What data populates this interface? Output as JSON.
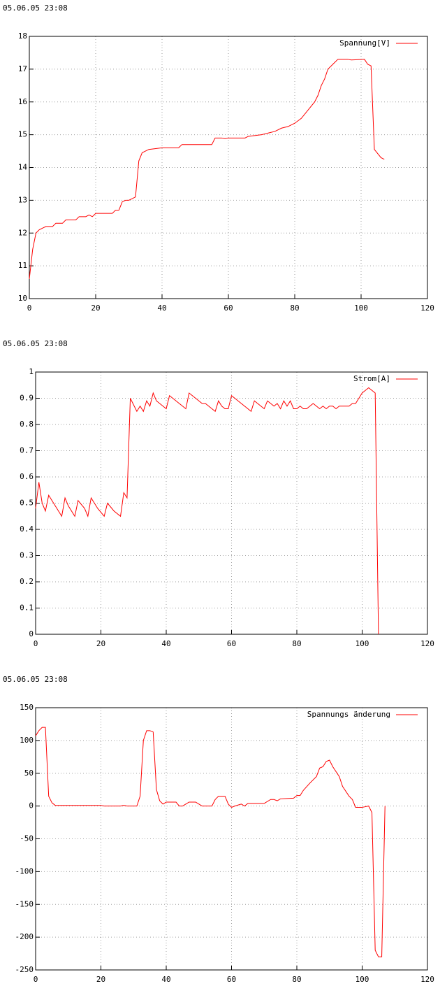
{
  "chart_data": [
    {
      "type": "line",
      "title": "05.06.05 23:08",
      "x": [
        0,
        1,
        2,
        3,
        4,
        5,
        7,
        8,
        10,
        11,
        14,
        15,
        17,
        18,
        19,
        20,
        25,
        26,
        27,
        28,
        29,
        30,
        31,
        32,
        33,
        34,
        35,
        36,
        40,
        45,
        46,
        55,
        56,
        58,
        59,
        60,
        65,
        66,
        70,
        72,
        74,
        76,
        78,
        80,
        82,
        84,
        86,
        87,
        88,
        89,
        90,
        92,
        93,
        96,
        97,
        101,
        102,
        103,
        104,
        106,
        107
      ],
      "series": [
        {
          "name": "Spannung[V]",
          "color": "#ff0000",
          "values": [
            10.6,
            11.5,
            12.0,
            12.1,
            12.15,
            12.2,
            12.2,
            12.3,
            12.3,
            12.4,
            12.4,
            12.5,
            12.5,
            12.55,
            12.5,
            12.6,
            12.6,
            12.7,
            12.7,
            12.95,
            13.0,
            13.0,
            13.05,
            13.1,
            14.2,
            14.45,
            14.5,
            14.55,
            14.6,
            14.6,
            14.7,
            14.7,
            14.9,
            14.9,
            14.88,
            14.9,
            14.9,
            14.95,
            15.0,
            15.05,
            15.1,
            15.2,
            15.25,
            15.35,
            15.5,
            15.75,
            16.0,
            16.2,
            16.5,
            16.7,
            17.0,
            17.2,
            17.3,
            17.3,
            17.28,
            17.3,
            17.15,
            17.1,
            14.55,
            14.3,
            14.25
          ]
        }
      ],
      "xlim": [
        0,
        120
      ],
      "xticks": [
        0,
        20,
        40,
        60,
        80,
        100,
        120
      ],
      "ylim": [
        10,
        18
      ],
      "yticks": [
        10,
        11,
        12,
        13,
        14,
        15,
        16,
        17,
        18
      ],
      "grid": true,
      "legend": "top-right"
    },
    {
      "type": "line",
      "title": "05.06.05 23:08",
      "x": [
        0,
        1,
        2,
        3,
        4,
        6,
        8,
        9,
        10,
        12,
        13,
        15,
        16,
        17,
        19,
        21,
        22,
        24,
        26,
        27,
        28,
        29,
        31,
        32,
        33,
        34,
        35,
        36,
        37,
        38,
        40,
        41,
        43,
        45,
        46,
        47,
        49,
        51,
        52,
        54,
        55,
        56,
        57,
        58,
        59,
        60,
        62,
        65,
        66,
        67,
        69,
        70,
        71,
        73,
        74,
        75,
        76,
        77,
        78,
        79,
        80,
        81,
        82,
        83,
        85,
        86,
        87,
        88,
        89,
        90,
        91,
        92,
        93,
        96,
        97,
        98,
        99,
        100,
        102,
        103,
        104,
        105
      ],
      "series": [
        {
          "name": "Strom[A]",
          "color": "#ff0000",
          "values": [
            0.48,
            0.58,
            0.5,
            0.47,
            0.53,
            0.49,
            0.45,
            0.52,
            0.49,
            0.45,
            0.51,
            0.48,
            0.45,
            0.52,
            0.48,
            0.45,
            0.5,
            0.47,
            0.45,
            0.54,
            0.52,
            0.9,
            0.85,
            0.87,
            0.85,
            0.89,
            0.87,
            0.92,
            0.89,
            0.88,
            0.86,
            0.91,
            0.89,
            0.87,
            0.86,
            0.92,
            0.9,
            0.88,
            0.88,
            0.86,
            0.85,
            0.89,
            0.87,
            0.86,
            0.86,
            0.91,
            0.89,
            0.86,
            0.85,
            0.89,
            0.87,
            0.86,
            0.89,
            0.87,
            0.88,
            0.86,
            0.89,
            0.87,
            0.89,
            0.86,
            0.86,
            0.87,
            0.86,
            0.86,
            0.88,
            0.87,
            0.86,
            0.87,
            0.86,
            0.87,
            0.87,
            0.86,
            0.87,
            0.87,
            0.88,
            0.88,
            0.9,
            0.92,
            0.94,
            0.93,
            0.92,
            0
          ]
        }
      ],
      "xlim": [
        0,
        120
      ],
      "xticks": [
        0,
        20,
        40,
        60,
        80,
        100,
        120
      ],
      "ylim": [
        0,
        1
      ],
      "yticks": [
        0,
        0.1,
        0.2,
        0.3,
        0.4,
        0.5,
        0.6,
        0.7,
        0.8,
        0.9,
        1
      ],
      "grid": true,
      "legend": "top-right"
    },
    {
      "type": "line",
      "title": "05.06.05 23:08",
      "x": [
        0,
        1,
        2,
        3,
        4,
        5,
        6,
        10,
        20,
        21,
        26,
        27,
        28,
        31,
        32,
        33,
        34,
        35,
        36,
        37,
        38,
        39,
        40,
        43,
        44,
        45,
        46,
        47,
        49,
        50,
        51,
        54,
        55,
        56,
        58,
        59,
        60,
        61,
        63,
        64,
        65,
        70,
        72,
        73,
        74,
        75,
        79,
        80,
        81,
        82,
        84,
        86,
        87,
        88,
        89,
        90,
        91,
        93,
        94,
        96,
        97,
        98,
        100,
        101,
        102,
        103,
        104,
        105,
        106,
        107
      ],
      "series": [
        {
          "name": "Spannungs änderung",
          "color": "#ff0000",
          "values": [
            107,
            115,
            120,
            120,
            15,
            5,
            1,
            1,
            1,
            0,
            0,
            1,
            0,
            0,
            15,
            100,
            115,
            115,
            113,
            25,
            8,
            3,
            6,
            6,
            0,
            0,
            3,
            6,
            6,
            3,
            0,
            0,
            10,
            15,
            15,
            3,
            -2,
            0,
            3,
            0,
            4,
            4,
            10,
            10,
            8,
            11,
            12,
            16,
            16,
            24,
            35,
            45,
            58,
            60,
            68,
            70,
            60,
            45,
            30,
            15,
            10,
            -2,
            -2,
            -1,
            0,
            -10,
            -220,
            -230,
            -230,
            0
          ]
        }
      ],
      "xlim": [
        0,
        120
      ],
      "xticks": [
        0,
        20,
        40,
        60,
        80,
        100,
        120
      ],
      "ylim": [
        -250,
        150
      ],
      "yticks": [
        -250,
        -200,
        -150,
        -100,
        -50,
        0,
        50,
        100,
        150
      ],
      "grid": true,
      "legend": "top-right"
    }
  ]
}
